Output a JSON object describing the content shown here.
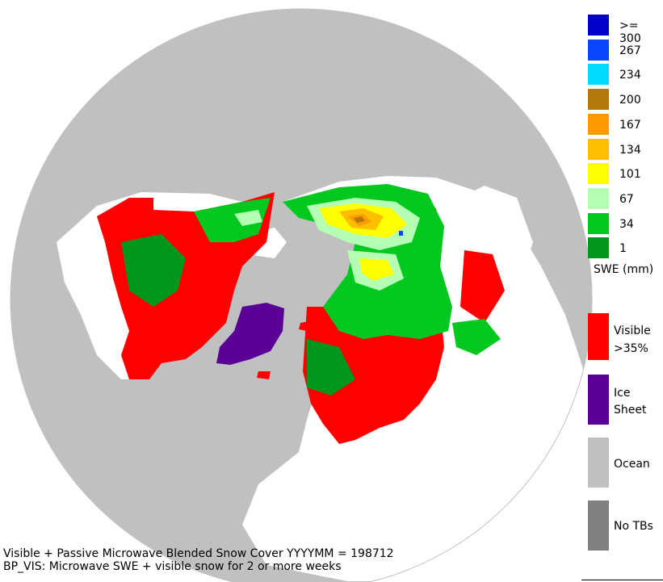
{
  "colors": {
    "background": "#ffffff",
    "ocean": "#c0c0c0",
    "land": "#ffffff",
    "visible_snow": "#ff0000",
    "ice_sheet": "#5b0096",
    "no_tbs": "#808080"
  },
  "swe_legend": {
    "unit_label": "SWE (mm)",
    "classes": [
      {
        "label": ">= 300",
        "color": "#0000c8"
      },
      {
        "label": "267",
        "color": "#0a46ff"
      },
      {
        "label": "234",
        "color": "#00dcff"
      },
      {
        "label": "200",
        "color": "#b4780a"
      },
      {
        "label": "167",
        "color": "#ff9b00"
      },
      {
        "label": "134",
        "color": "#ffbe00"
      },
      {
        "label": "101",
        "color": "#ffff00"
      },
      {
        "label": "67",
        "color": "#b4ffb4"
      },
      {
        "label": "34",
        "color": "#00c81e"
      },
      {
        "label": "1",
        "color": "#00961e"
      }
    ]
  },
  "category_legend": {
    "visible": {
      "line1": "Visible",
      "line2": ">35%"
    },
    "ice_sheet": {
      "line1": "Ice",
      "line2": "Sheet"
    },
    "ocean": {
      "label": "Ocean"
    },
    "no_tbs": {
      "label": "No TBs"
    }
  },
  "footer": {
    "line1": "Visible + Passive Microwave Blended Snow Cover YYYYMM = 198712",
    "line2": "BP_VIS: Microwave SWE + visible snow for 2 or more weeks"
  }
}
